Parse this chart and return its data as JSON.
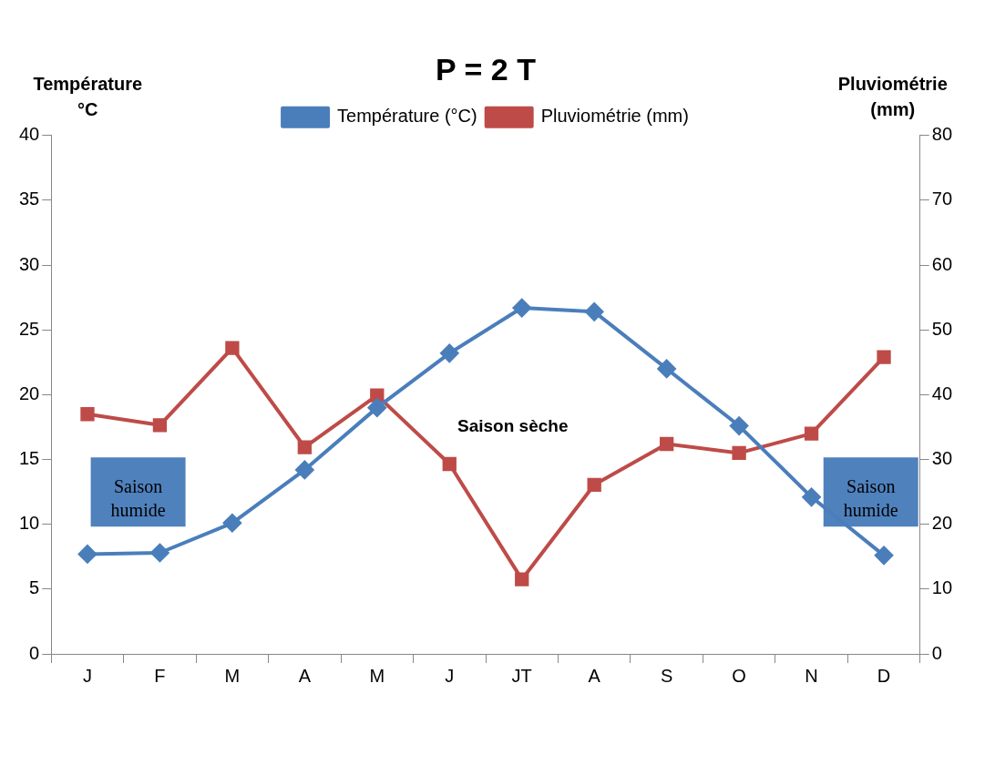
{
  "chart_data": {
    "type": "line",
    "title": "P = 2 T",
    "ylabel": "Température °C",
    "y2label": "Pluviométrie (mm)",
    "categories": [
      "J",
      "F",
      "M",
      "A",
      "M",
      "J",
      "JT",
      "A",
      "S",
      "O",
      "N",
      "D"
    ],
    "series": [
      {
        "name": "Température (°C)",
        "color": "#4a7ebb",
        "marker": "diamond",
        "values": [
          7.7,
          7.8,
          10.1,
          14.2,
          19.0,
          23.2,
          26.7,
          26.4,
          22.0,
          17.6,
          12.1,
          7.6
        ]
      },
      {
        "name": "Pluviométrie (mm)",
        "color": "#be4b48",
        "marker": "square",
        "axis": "y2",
        "values": [
          37,
          35.3,
          47.2,
          31.9,
          39.9,
          29.3,
          11.5,
          26.1,
          32.4,
          31.0,
          34.0,
          45.8
        ]
      }
    ],
    "ylim": [
      0,
      40
    ],
    "yticks": [
      0,
      5,
      10,
      15,
      20,
      25,
      30,
      35,
      40
    ],
    "y2lim": [
      0,
      80
    ],
    "y2ticks": [
      0,
      10,
      20,
      30,
      40,
      50,
      60,
      70,
      80
    ],
    "annotations": [
      "Saison humide",
      "Saison sèche",
      "Saison humide"
    ],
    "grid": false,
    "legend": "top",
    "line_style": "solid"
  }
}
